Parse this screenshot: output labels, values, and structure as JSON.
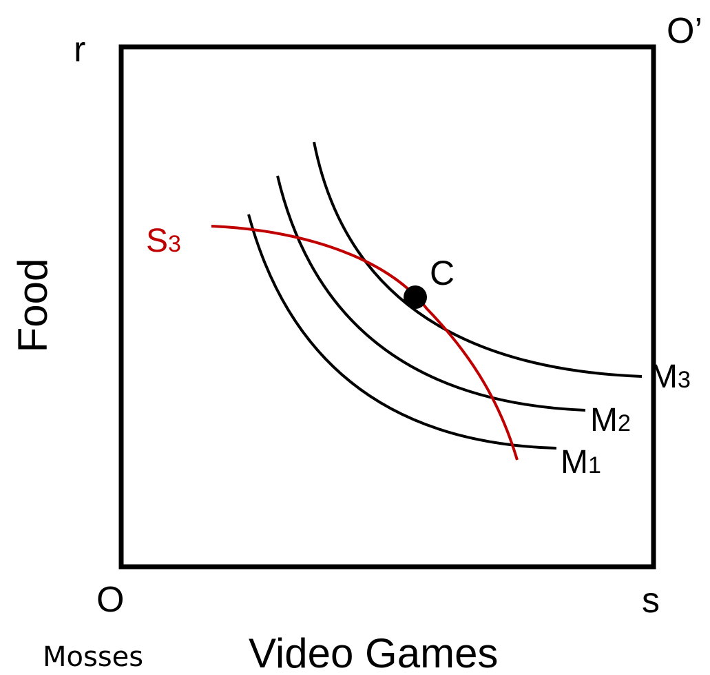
{
  "labels": {
    "corner_top_left": "r",
    "corner_top_right": "O’",
    "corner_bottom_left": "O",
    "corner_bottom_right": "s",
    "y_axis": "Food",
    "x_axis": "Video Games",
    "owner": "Mosses",
    "point": "C"
  },
  "curves": {
    "m1": {
      "letter": "M",
      "sub": "1"
    },
    "m2": {
      "letter": "M",
      "sub": "2"
    },
    "m3": {
      "letter": "M",
      "sub": "3"
    },
    "s3": {
      "letter": "S",
      "sub": "3"
    }
  },
  "colors": {
    "line": "#000000",
    "contract": "#c00000"
  }
}
